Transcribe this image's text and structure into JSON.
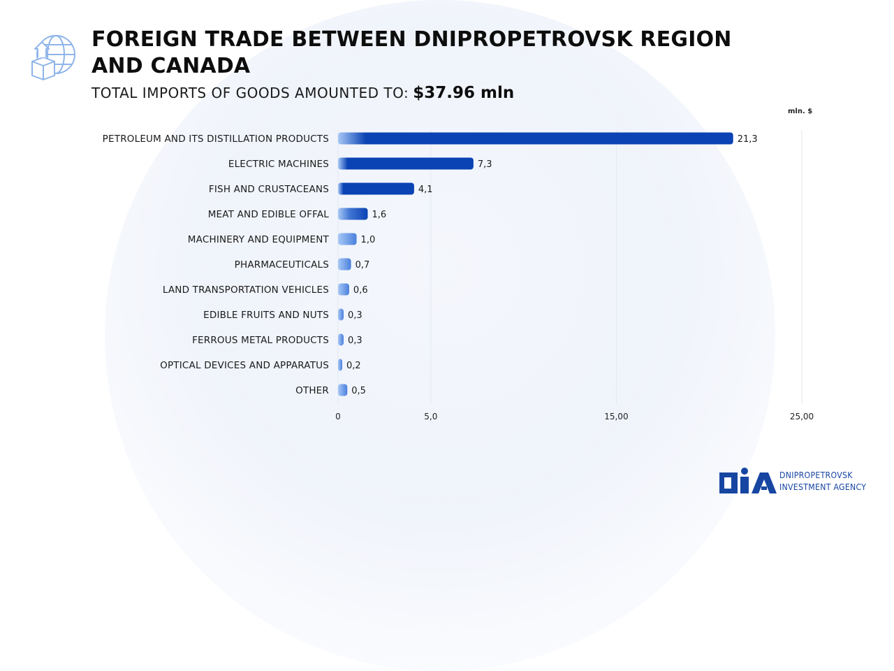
{
  "title": "FOREIGN TRADE BETWEEN DNIPROPETROVSK REGION AND CANADA",
  "subtitle": {
    "label": "TOTAL IMPORTS OF GOODS AMOUNTED TO:",
    "amount": "$37.96  mln"
  },
  "icons": {
    "header": "globe-trade-icon"
  },
  "colors": {
    "bar_dark": "#0b43b4",
    "bar_light": "#9cc2f5",
    "accent": "#1746a2"
  },
  "chart_data": {
    "type": "bar",
    "orientation": "horizontal",
    "unit_label": "mln. $",
    "categories": [
      "PETROLEUM AND ITS DISTILLATION PRODUCTS",
      "ELECTRIC MACHINES",
      "FISH AND CRUSTACEANS",
      "MEAT AND EDIBLE OFFAL",
      "MACHINERY AND EQUIPMENT",
      "PHARMACEUTICALS",
      "LAND TRANSPORTATION VEHICLES",
      "EDIBLE FRUITS AND NUTS",
      "FERROUS METAL PRODUCTS",
      "OPTICAL DEVICES AND APPARATUS",
      "OTHER"
    ],
    "values": [
      21.3,
      7.3,
      4.1,
      1.6,
      1.0,
      0.7,
      0.6,
      0.3,
      0.3,
      0.2,
      0.5
    ],
    "value_labels": [
      "21,3",
      "7,3",
      "4,1",
      "1,6",
      "1,0",
      "0,7",
      "0,6",
      "0,3",
      "0,3",
      "0,2",
      "0,5"
    ],
    "xticks": [
      {
        "value": 0,
        "label": "0"
      },
      {
        "value": 5,
        "label": "5,0"
      },
      {
        "value": 15,
        "label": "15,00"
      },
      {
        "value": 25,
        "label": "25,00"
      }
    ],
    "grid": true
  },
  "logo": {
    "mark": "DIA",
    "line1": "DNIPROPETROVSK",
    "line2": "INVESTMENT AGENCY"
  }
}
